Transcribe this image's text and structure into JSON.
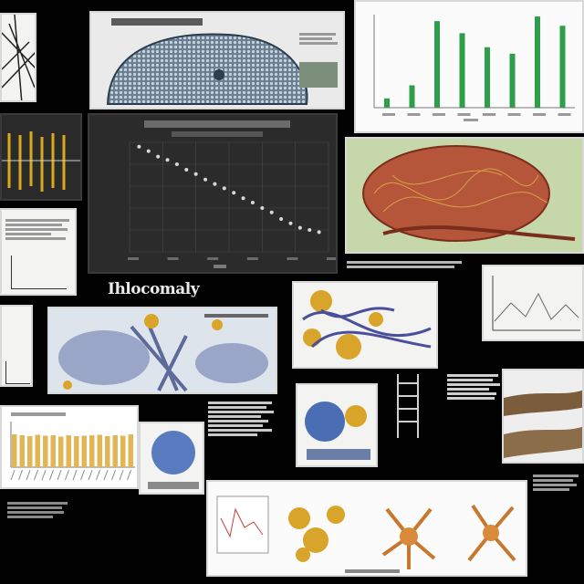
{
  "collage": {
    "center_caption": "Ihlocomaly"
  },
  "chart_data": [
    {
      "type": "bar",
      "title": "",
      "xlabel": "",
      "ylabel": "",
      "ylim": [
        0,
        100
      ],
      "series": [
        {
          "values": [
            10,
            0,
            0,
            0,
            0,
            0,
            0,
            0
          ]
        },
        {
          "values": [
            0,
            24,
            0,
            0,
            0,
            0,
            0,
            0
          ]
        },
        {
          "values": [
            0,
            0,
            93,
            0,
            0,
            0,
            0,
            0
          ]
        },
        {
          "values": [
            0,
            0,
            0,
            80,
            0,
            0,
            0,
            0
          ]
        },
        {
          "values": [
            0,
            0,
            0,
            0,
            65,
            0,
            0,
            0
          ]
        },
        {
          "values": [
            0,
            0,
            0,
            0,
            0,
            58,
            0,
            0
          ]
        },
        {
          "values": [
            0,
            0,
            0,
            0,
            0,
            0,
            98,
            0
          ]
        },
        {
          "values": [
            0,
            0,
            0,
            0,
            0,
            0,
            0,
            88
          ]
        }
      ]
    },
    {
      "type": "scatter",
      "title": "",
      "xlabel": "",
      "ylabel": "",
      "x": [
        1,
        2,
        3,
        4,
        5,
        6,
        7,
        8,
        9,
        10,
        11,
        12,
        13,
        14,
        15,
        16,
        17,
        18,
        19,
        20
      ],
      "y": [
        96,
        92,
        87,
        84,
        80,
        75,
        71,
        66,
        62,
        58,
        54,
        49,
        45,
        40,
        36,
        30,
        26,
        22,
        20,
        18
      ],
      "grid": true
    },
    {
      "type": "bar",
      "title": "",
      "xlabel": "",
      "ylabel": "",
      "ylim": [
        0,
        100
      ],
      "values": [
        72,
        70,
        68,
        71,
        69,
        70,
        67,
        70,
        68,
        69,
        70,
        71,
        68,
        70,
        69,
        72
      ]
    }
  ]
}
